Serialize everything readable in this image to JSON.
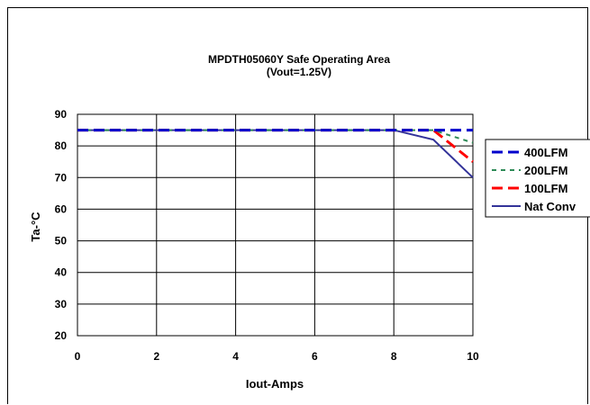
{
  "chart_data": {
    "type": "line",
    "title": "MPDTH05060Y Safe Operating Area",
    "subtitle": "(Vout=1.25V)",
    "xlabel": "Iout-Amps",
    "ylabel": "Ta-°C",
    "xlim": [
      0,
      10
    ],
    "ylim": [
      20,
      90
    ],
    "xticks": [
      0,
      2,
      4,
      6,
      8,
      10
    ],
    "yticks": [
      20,
      30,
      40,
      50,
      60,
      70,
      80,
      90
    ],
    "grid": true,
    "legend_position": "right",
    "series": [
      {
        "name": "400LFM",
        "color": "#0000cc",
        "dash": "long-dash",
        "x": [
          0,
          8,
          9,
          10
        ],
        "y": [
          85,
          85,
          85,
          85
        ]
      },
      {
        "name": "200LFM",
        "color": "#2e8b57",
        "dash": "short-dash",
        "x": [
          0,
          8,
          9,
          10
        ],
        "y": [
          85,
          85,
          85,
          81
        ]
      },
      {
        "name": "100LFM",
        "color": "#ff0000",
        "dash": "long-dash",
        "x": [
          0,
          8,
          9,
          10
        ],
        "y": [
          85,
          85,
          85,
          75
        ]
      },
      {
        "name": "Nat Conv",
        "color": "#333399",
        "dash": "solid",
        "x": [
          0,
          8,
          9,
          10
        ],
        "y": [
          85,
          85,
          82,
          70
        ]
      }
    ]
  }
}
